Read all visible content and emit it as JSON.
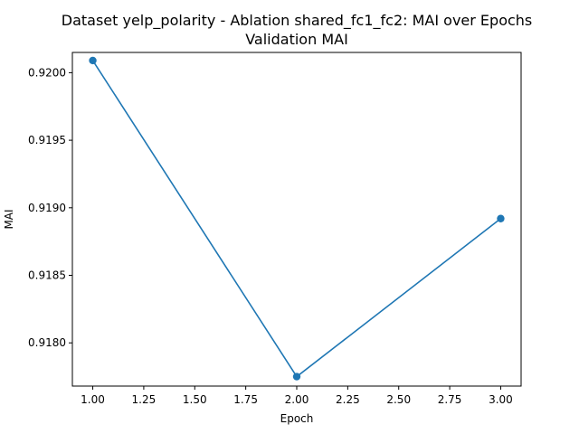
{
  "chart_data": {
    "type": "line",
    "title": "Dataset yelp_polarity - Ablation shared_fc1_fc2: MAI over Epochs",
    "subtitle": "Validation MAI",
    "xlabel": "Epoch",
    "ylabel": "MAI",
    "xlim": [
      0.9,
      3.1
    ],
    "ylim": [
      0.91768,
      0.92015
    ],
    "x_ticks": [
      1.0,
      1.25,
      1.5,
      1.75,
      2.0,
      2.25,
      2.5,
      2.75,
      3.0
    ],
    "x_tick_labels": [
      "1.00",
      "1.25",
      "1.50",
      "1.75",
      "2.00",
      "2.25",
      "2.50",
      "2.75",
      "3.00"
    ],
    "y_ticks": [
      0.918,
      0.9185,
      0.919,
      0.9195,
      0.92
    ],
    "y_tick_labels": [
      "0.9180",
      "0.9185",
      "0.9190",
      "0.9195",
      "0.9200"
    ],
    "grid": false,
    "series": [
      {
        "x": [
          1.0,
          2.0,
          3.0
        ],
        "y": [
          0.92009,
          0.91775,
          0.91892
        ],
        "color": "#1f77b4",
        "marker": "circle"
      }
    ]
  }
}
